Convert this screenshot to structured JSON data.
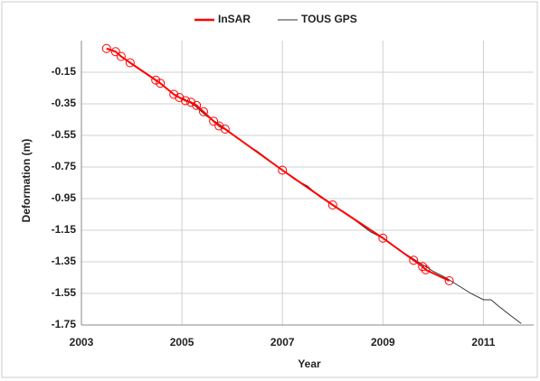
{
  "chart_data": {
    "type": "line",
    "xlabel": "Year",
    "ylabel": "Deformation (m)",
    "xlim": [
      2003,
      2012
    ],
    "xticks": [
      2003,
      2005,
      2007,
      2009,
      2011
    ],
    "ylim": [
      -1.75,
      0.05
    ],
    "yticks": [
      -1.75,
      -1.55,
      -1.35,
      -1.15,
      -0.95,
      -0.75,
      -0.55,
      -0.35,
      -0.15
    ],
    "grid": true,
    "legend": "top",
    "series": [
      {
        "name": "InSAR",
        "color": "#ff0000",
        "markers": true,
        "x": [
          2003.5,
          2003.68,
          2003.79,
          2003.97,
          2004.48,
          2004.57,
          2004.84,
          2004.95,
          2005.07,
          2005.18,
          2005.29,
          2005.43,
          2005.63,
          2005.74,
          2005.86,
          2007.0,
          2008.0,
          2009.0,
          2009.61,
          2009.79,
          2009.85,
          2010.32
        ],
        "values": [
          0.0,
          -0.02,
          -0.05,
          -0.09,
          -0.2,
          -0.22,
          -0.29,
          -0.31,
          -0.33,
          -0.34,
          -0.36,
          -0.4,
          -0.46,
          -0.49,
          -0.51,
          -0.77,
          -0.99,
          -1.2,
          -1.34,
          -1.38,
          -1.4,
          -1.47
        ]
      },
      {
        "name": "TOUS GPS",
        "color": "#333333",
        "markers": false,
        "x": [
          2005.0,
          2005.25,
          2005.5,
          2005.75,
          2006.0,
          2006.25,
          2006.5,
          2006.75,
          2007.0,
          2007.25,
          2007.5,
          2007.75,
          2008.0,
          2008.25,
          2008.5,
          2008.75,
          2009.0,
          2009.25,
          2009.5,
          2009.75,
          2010.0,
          2010.25,
          2010.5,
          2010.75,
          2011.0,
          2011.15,
          2011.3,
          2011.5,
          2011.75
        ],
        "values": [
          -0.31,
          -0.36,
          -0.43,
          -0.48,
          -0.54,
          -0.6,
          -0.65,
          -0.71,
          -0.77,
          -0.83,
          -0.87,
          -0.94,
          -0.99,
          -1.04,
          -1.1,
          -1.16,
          -1.2,
          -1.26,
          -1.31,
          -1.36,
          -1.41,
          -1.45,
          -1.5,
          -1.55,
          -1.59,
          -1.59,
          -1.63,
          -1.68,
          -1.74
        ]
      }
    ]
  }
}
